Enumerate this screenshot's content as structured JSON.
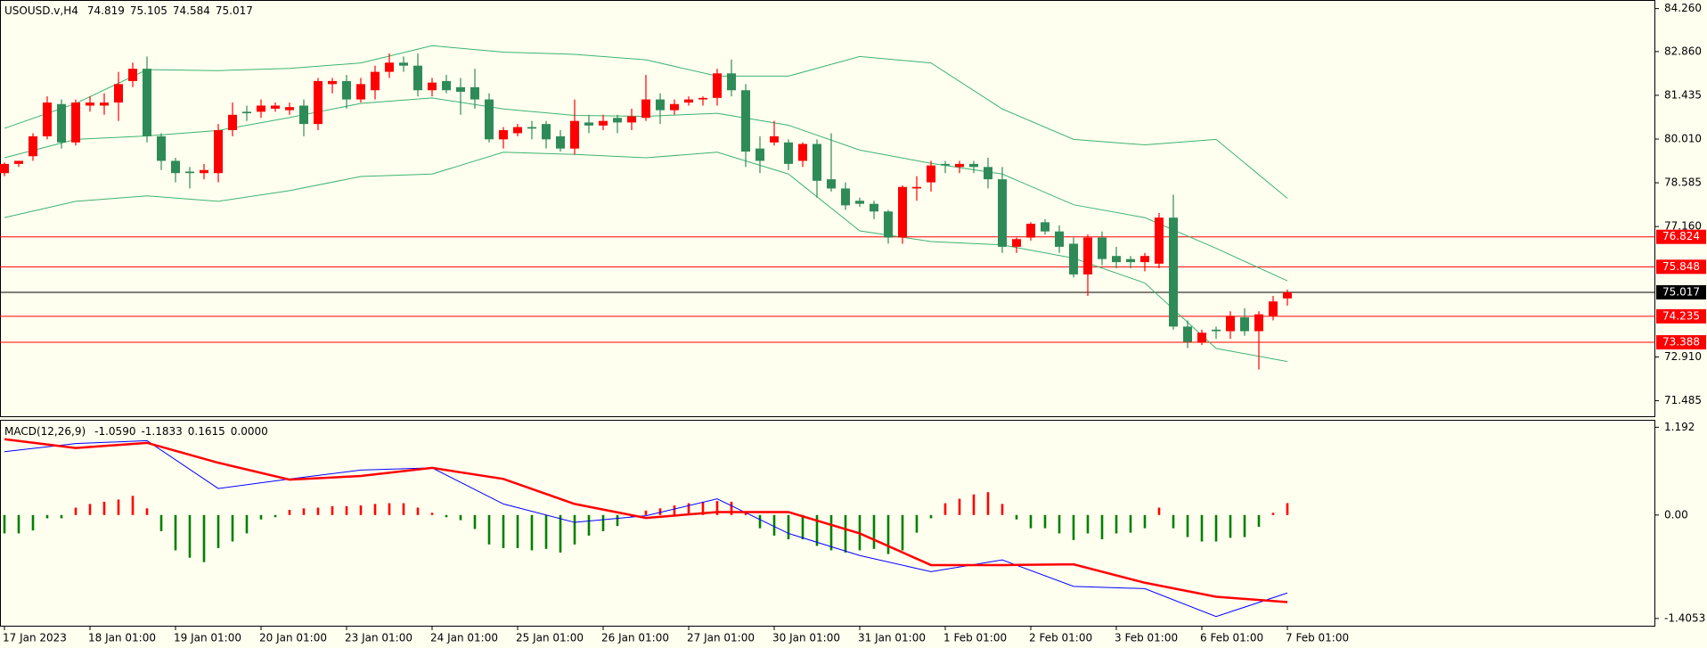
{
  "chart_data": [
    {
      "type": "candlestick",
      "title": "USOUSD.v,H4",
      "quote": [
        74.819,
        75.105,
        74.584,
        75.017
      ],
      "categories": [
        "17 Jan 2023",
        null,
        null,
        null,
        null,
        null,
        "18 Jan 01:00",
        null,
        null,
        null,
        null,
        null,
        "19 Jan 01:00",
        null,
        null,
        null,
        null,
        null,
        "20 Jan 01:00",
        null,
        null,
        null,
        null,
        null,
        "23 Jan 01:00",
        null,
        null,
        null,
        null,
        null,
        "24 Jan 01:00",
        null,
        null,
        null,
        null,
        null,
        "25 Jan 01:00",
        null,
        null,
        null,
        null,
        null,
        "26 Jan 01:00",
        null,
        null,
        null,
        null,
        null,
        "27 Jan 01:00",
        null,
        null,
        null,
        null,
        null,
        "30 Jan 01:00",
        null,
        null,
        null,
        null,
        null,
        "31 Jan 01:00",
        null,
        null,
        null,
        null,
        null,
        "1 Feb 01:00",
        null,
        null,
        null,
        null,
        null,
        "2 Feb 01:00",
        null,
        null,
        null,
        null,
        null,
        "3 Feb 01:00",
        null,
        null,
        null,
        null,
        null,
        "6 Feb 01:00",
        null,
        null,
        null,
        null,
        null,
        "7 Feb 01:00"
      ],
      "open": [
        78.9,
        79.2,
        79.45,
        80.1,
        81.15,
        79.9,
        81.1,
        81.1,
        81.2,
        81.9,
        82.3,
        80.1,
        79.3,
        78.95,
        78.9,
        78.9,
        80.3,
        80.9,
        80.9,
        81.0,
        80.95,
        81.1,
        80.5,
        81.8,
        81.9,
        81.3,
        81.6,
        82.2,
        82.5,
        82.4,
        81.6,
        81.9,
        81.7,
        81.7,
        81.3,
        80.0,
        80.2,
        80.4,
        80.5,
        80.1,
        79.7,
        80.55,
        80.45,
        80.7,
        80.55,
        80.7,
        81.3,
        80.95,
        81.2,
        81.3,
        81.35,
        82.15,
        81.6,
        79.7,
        79.9,
        79.9,
        79.3,
        79.85,
        78.7,
        78.4,
        78.0,
        77.9,
        77.65,
        76.8,
        78.4,
        78.6,
        79.2,
        79.1,
        79.2,
        79.1,
        78.7,
        76.5,
        76.8,
        77.3,
        77.0,
        76.6,
        75.6,
        76.8,
        76.2,
        76.1,
        76.0,
        75.95,
        77.45,
        73.9,
        73.4,
        73.8,
        73.75,
        74.2,
        73.75,
        74.25,
        74.819
      ],
      "high": [
        79.25,
        79.3,
        80.2,
        81.4,
        81.3,
        81.3,
        81.4,
        81.5,
        82.2,
        82.5,
        82.7,
        80.2,
        79.4,
        79.1,
        79.2,
        80.5,
        81.2,
        81.1,
        81.3,
        81.2,
        81.2,
        81.3,
        82.0,
        82.0,
        82.1,
        82.0,
        82.4,
        82.8,
        82.7,
        82.8,
        82.0,
        82.1,
        82.0,
        82.3,
        81.5,
        80.4,
        80.5,
        80.6,
        80.6,
        80.3,
        81.3,
        80.8,
        80.8,
        80.8,
        81.0,
        82.1,
        81.5,
        81.3,
        81.4,
        81.4,
        82.3,
        82.6,
        81.8,
        80.1,
        80.6,
        80.0,
        79.9,
        80.0,
        80.2,
        78.6,
        78.1,
        78.0,
        77.7,
        78.5,
        78.8,
        79.3,
        79.3,
        79.3,
        79.3,
        79.4,
        79.1,
        76.8,
        77.3,
        77.4,
        77.2,
        76.8,
        76.9,
        77.0,
        76.5,
        76.2,
        76.3,
        77.6,
        78.2,
        74.1,
        73.8,
        73.9,
        74.4,
        74.5,
        74.4,
        74.9,
        75.105
      ],
      "low": [
        78.8,
        79.1,
        79.3,
        80.0,
        79.7,
        79.8,
        80.9,
        80.8,
        80.6,
        81.7,
        79.9,
        79.0,
        78.6,
        78.4,
        78.7,
        78.6,
        80.1,
        80.6,
        80.7,
        80.9,
        80.8,
        80.1,
        80.3,
        81.5,
        81.0,
        81.2,
        81.3,
        82.0,
        82.2,
        81.4,
        81.4,
        81.5,
        80.8,
        81.0,
        79.9,
        79.7,
        80.1,
        80.0,
        79.7,
        79.6,
        79.5,
        80.2,
        80.3,
        80.2,
        80.3,
        80.6,
        80.5,
        80.8,
        81.1,
        81.1,
        81.1,
        81.4,
        79.1,
        78.9,
        79.8,
        79.0,
        79.1,
        78.1,
        78.3,
        77.7,
        77.8,
        77.4,
        76.6,
        76.6,
        78.0,
        78.3,
        78.9,
        78.9,
        78.9,
        78.4,
        76.3,
        76.3,
        76.7,
        76.9,
        76.3,
        75.5,
        74.9,
        75.9,
        75.8,
        75.8,
        75.7,
        75.8,
        73.8,
        73.2,
        73.3,
        73.5,
        73.5,
        73.6,
        72.5,
        74.1,
        74.584
      ],
      "close": [
        79.2,
        79.3,
        80.1,
        81.2,
        79.9,
        81.2,
        81.2,
        81.2,
        81.8,
        82.3,
        80.1,
        79.3,
        78.9,
        78.9,
        79.0,
        80.3,
        80.8,
        80.85,
        81.1,
        81.1,
        81.05,
        80.5,
        81.9,
        81.9,
        81.3,
        81.8,
        82.2,
        82.5,
        82.4,
        81.6,
        81.85,
        81.6,
        81.55,
        81.3,
        80.0,
        80.3,
        80.4,
        80.35,
        80.0,
        79.7,
        80.6,
        80.45,
        80.6,
        80.55,
        80.75,
        81.3,
        80.95,
        81.15,
        81.3,
        81.35,
        82.15,
        81.6,
        79.6,
        79.3,
        80.1,
        79.2,
        79.85,
        78.65,
        78.4,
        77.85,
        77.9,
        77.65,
        76.8,
        78.45,
        78.45,
        79.15,
        79.15,
        79.2,
        79.1,
        78.7,
        76.5,
        76.75,
        77.25,
        77.0,
        76.5,
        75.6,
        76.8,
        76.1,
        76.0,
        76.0,
        76.2,
        77.45,
        73.9,
        73.4,
        73.7,
        73.75,
        74.25,
        73.75,
        74.3,
        74.72,
        75.017
      ],
      "up_color": "#ff0000",
      "down_color": "#2e8b57",
      "bands": {
        "x": [
          0,
          5,
          10,
          15,
          20,
          25,
          30,
          35,
          40,
          45,
          50,
          55,
          60,
          65,
          70,
          75,
          80,
          85,
          90
        ],
        "series": [
          {
            "color": "#3cb371",
            "values": [
              80.36,
              81.17,
              82.27,
              82.24,
              82.31,
              82.49,
              83.05,
              82.84,
              82.77,
              82.59,
              82.06,
              82.06,
              82.7,
              82.49,
              80.99,
              80.0,
              79.82,
              80.0,
              78.08
            ]
          },
          {
            "color": "#3cb371",
            "values": [
              79.4,
              80.0,
              80.11,
              80.29,
              80.71,
              81.17,
              81.35,
              80.99,
              80.78,
              80.75,
              80.85,
              80.46,
              79.65,
              79.22,
              78.87,
              77.87,
              77.45,
              76.45,
              75.39
            ]
          },
          {
            "color": "#3cb371",
            "values": [
              77.45,
              77.98,
              78.16,
              77.98,
              78.33,
              78.79,
              78.87,
              79.58,
              79.51,
              79.4,
              79.58,
              78.87,
              77.02,
              76.67,
              76.56,
              76.13,
              75.32,
              73.19,
              72.76
            ]
          }
        ]
      },
      "levels": [
        {
          "value": 76.824,
          "color": "#ff0000"
        },
        {
          "value": 75.848,
          "color": "#ff0000"
        },
        {
          "value": 75.017,
          "color": "#000000"
        },
        {
          "value": 74.235,
          "color": "#ff0000"
        },
        {
          "value": 73.388,
          "color": "#ff0000"
        }
      ],
      "ylim": [
        70.95,
        84.54
      ],
      "yticks": [
        {
          "value": 84.26,
          "label": "84.260"
        },
        {
          "value": 82.86,
          "label": "82.860"
        },
        81.435,
        {
          "value": 80.01,
          "label": "80.010"
        },
        78.585,
        {
          "value": 77.16,
          "label": "77.160"
        },
        {
          "value": 72.91,
          "label": "72.910"
        },
        71.485
      ]
    },
    {
      "type": "macd",
      "title": "MACD(12,26,9)",
      "readout": [
        {
          "value": -1.059,
          "label": "-1.0590"
        },
        -1.1833,
        0.1615,
        {
          "value": 0,
          "label": "0.0000"
        }
      ],
      "histogram": {
        "up_color": "#ff0000",
        "down_color": "#008000",
        "values": [
          -0.25,
          -0.25,
          -0.21,
          -0.045,
          -0.045,
          0.1,
          0.15,
          0.18,
          0.21,
          0.26,
          0.09,
          -0.22,
          -0.48,
          -0.58,
          -0.64,
          -0.45,
          -0.36,
          -0.25,
          -0.06,
          -0.03,
          0.07,
          0.09,
          0.1,
          0.12,
          0.12,
          0.13,
          0.15,
          0.16,
          0.16,
          0.1,
          0.03,
          -0.03,
          -0.07,
          -0.19,
          -0.4,
          -0.45,
          -0.45,
          -0.48,
          -0.46,
          -0.51,
          -0.4,
          -0.28,
          -0.22,
          -0.15,
          -0.03,
          0.06,
          0.09,
          0.13,
          0.16,
          0.18,
          0.19,
          0.18,
          0.04,
          -0.18,
          -0.28,
          -0.33,
          -0.33,
          -0.42,
          -0.48,
          -0.51,
          -0.48,
          -0.46,
          -0.53,
          -0.48,
          -0.24,
          -0.045,
          0.16,
          0.22,
          0.28,
          0.31,
          0.15,
          -0.06,
          -0.18,
          -0.18,
          -0.25,
          -0.34,
          -0.25,
          -0.33,
          -0.25,
          -0.24,
          -0.18,
          0.1,
          -0.18,
          -0.3,
          -0.36,
          -0.36,
          -0.31,
          -0.3,
          -0.16,
          0.03,
          0.1615
        ]
      },
      "x": [
        0,
        5,
        10,
        15,
        20,
        25,
        30,
        35,
        40,
        45,
        50,
        55,
        60,
        65,
        70,
        75,
        80,
        85,
        90
      ],
      "series": [
        {
          "color": "#0000ff",
          "width": 1,
          "values": [
            0.86,
            0.97,
            1.01,
            0.36,
            0.49,
            0.61,
            0.64,
            0.15,
            -0.1,
            -0.01,
            0.22,
            -0.25,
            -0.55,
            -0.77,
            -0.61,
            -0.97,
            -1.0,
            -1.38,
            -1.059
          ]
        },
        {
          "color": "#ff0000",
          "width": 2.5,
          "values": [
            1.03,
            0.91,
            0.98,
            0.71,
            0.48,
            0.53,
            0.64,
            0.49,
            0.15,
            -0.04,
            0.04,
            0.04,
            -0.25,
            -0.68,
            -0.68,
            -0.67,
            -0.92,
            -1.11,
            -1.1833
          ]
        }
      ],
      "ylim": [
        -1.516,
        1.293
      ],
      "yticks": [
        1.192,
        {
          "value": 0,
          "label": "0.00"
        },
        -1.4053
      ]
    }
  ]
}
